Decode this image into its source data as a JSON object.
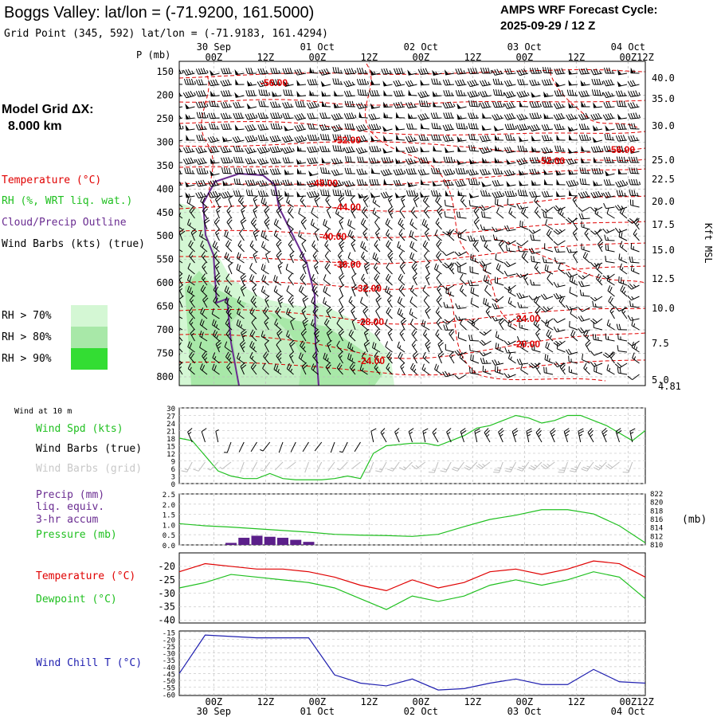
{
  "header": {
    "title": "Boggs Valley:  lat/lon = (-71.9200, 161.5000)",
    "subtitle": "Grid Point (345, 592) lat/lon = (-71.9183, 161.4294)",
    "cycle_line1": "AMPS WRF Forecast Cycle:",
    "cycle_line2": "2025-09-29 / 12  Z",
    "grid_label": "Model Grid ΔX:",
    "grid_value": "8.000 km"
  },
  "colors": {
    "temperature": "#e00000",
    "rh": "#20c020",
    "cloud_outline": "#6a2c91",
    "wind_chill": "#2020b0",
    "precip": "#5b1f8a",
    "rh70": "#d4f7d4",
    "rh80": "#a8e8a8",
    "rh90": "#33dd33"
  },
  "time_axis": {
    "top_labels": [
      "00Z",
      "12Z",
      "00Z",
      "12Z",
      "00Z",
      "12Z",
      "00Z",
      "12Z",
      "00Z",
      "12Z"
    ],
    "date_labels": [
      "30 Sep",
      "01 Oct",
      "02 Oct",
      "03 Oct",
      "04 Oct"
    ],
    "bottom_labels": [
      "00Z",
      "12Z",
      "00Z",
      "12Z",
      "00Z",
      "12Z",
      "00Z",
      "12Z",
      "00Z",
      "12Z"
    ]
  },
  "upper_panel": {
    "p_axis_label": "P (mb)",
    "p_levels": [
      150,
      200,
      250,
      300,
      350,
      400,
      450,
      500,
      550,
      600,
      650,
      700,
      750,
      800
    ],
    "kft_labels": [
      "40.0",
      "35.0",
      "30.0",
      "25.0",
      "22.5",
      "20.0",
      "17.5",
      "15.0",
      "12.5",
      "10.0",
      "7.5",
      "5.0"
    ],
    "kft_unit": "Kft MSL",
    "surface_height": "4.81",
    "legend": {
      "temperature": "Temperature (°C)",
      "rh": "RH (%, WRT liq. wat.)",
      "cloud": "Cloud/Precip Outline",
      "wind": "Wind Barbs (kts) (true)",
      "rh70": "RH > 70%",
      "rh80": "RH > 80%",
      "rh90": "RH > 90%"
    },
    "contour_labels": [
      "-56.00",
      "-52.00",
      "-56.00",
      "-52.00",
      "-48.00",
      "-44.00",
      "-40.00",
      "-36.00",
      "-32.00",
      "-28.00",
      "-24.00",
      "-24.00",
      "-20.00"
    ]
  },
  "wind_panel": {
    "header": "Wind at 10 m",
    "legend_speed": "Wind Spd (kts)",
    "legend_true": "Wind Barbs (true)",
    "legend_grid": "Wind Barbs (grid)",
    "y_ticks": [
      "30",
      "27",
      "24",
      "21",
      "18",
      "15",
      "12",
      "9",
      "6",
      "3",
      "0"
    ]
  },
  "precip_panel": {
    "legend_precip": "Precip (mm)",
    "legend_liq": "liq. equiv.",
    "legend_accum": "3-hr accum",
    "legend_pressure": "Pressure (mb)",
    "y_ticks_left": [
      "2.5",
      "2.0",
      "1.5",
      "1.0",
      "0.5",
      "0.0"
    ],
    "y_ticks_right": [
      "822",
      "820",
      "818",
      "816",
      "814",
      "812",
      "810"
    ],
    "right_unit": "(mb)"
  },
  "temp_panel": {
    "legend_temp": "Temperature (°C)",
    "legend_dew": "Dewpoint (°C)",
    "y_ticks": [
      "-20",
      "-25",
      "-30",
      "-35",
      "-40"
    ]
  },
  "chill_panel": {
    "legend": "Wind Chill T (°C)",
    "y_ticks": [
      "-15",
      "-20",
      "-25",
      "-30",
      "-35",
      "-40",
      "-45",
      "-50",
      "-55",
      "-60"
    ]
  },
  "chart_data": [
    {
      "type": "line",
      "title": "Wind at 10 m - Wind Spd (kts)",
      "x_unit": "forecast hour from 2025-09-29 12Z",
      "x": [
        0,
        3,
        6,
        9,
        12,
        15,
        18,
        21,
        24,
        27,
        30,
        33,
        36,
        39,
        42,
        45,
        48,
        51,
        54,
        57,
        60,
        63,
        66,
        69,
        72,
        75,
        78,
        81,
        84,
        87,
        90,
        93,
        96,
        99,
        102,
        105,
        108
      ],
      "series": [
        {
          "name": "Wind Spd (kts)",
          "values": [
            18,
            17,
            11,
            5,
            3,
            2,
            2,
            4,
            2,
            1.5,
            1.5,
            1.5,
            2,
            3,
            2,
            12,
            15,
            15.5,
            16,
            16,
            15,
            17,
            19,
            22,
            23,
            25,
            27,
            26,
            24,
            25,
            27,
            27,
            25,
            23,
            20,
            17,
            21
          ]
        }
      ],
      "ylim": [
        0,
        30
      ]
    },
    {
      "type": "bar",
      "title": "Precip (mm) liq. equiv. 3-hr accum",
      "x": [
        12,
        15,
        18,
        21,
        24,
        27,
        30
      ],
      "values": [
        0.1,
        0.35,
        0.45,
        0.4,
        0.35,
        0.25,
        0.15
      ],
      "ylim": [
        0,
        2.5
      ]
    },
    {
      "type": "line",
      "title": "Pressure (mb)",
      "x": [
        0,
        6,
        12,
        18,
        24,
        30,
        36,
        42,
        48,
        54,
        60,
        66,
        72,
        78,
        84,
        90,
        96,
        102,
        108
      ],
      "series": [
        {
          "name": "Pressure (mb)",
          "values": [
            815.0,
            814.5,
            814.2,
            813.8,
            813.4,
            813.0,
            812.5,
            812.3,
            812.2,
            812.0,
            812.5,
            814.3,
            816.0,
            817.0,
            818.3,
            818.3,
            817.3,
            814.5,
            810.5
          ]
        }
      ],
      "ylim": [
        810,
        822
      ]
    },
    {
      "type": "line",
      "title": "Temperature / Dewpoint (°C)",
      "x": [
        0,
        6,
        12,
        18,
        24,
        30,
        36,
        42,
        48,
        54,
        60,
        66,
        72,
        78,
        84,
        90,
        96,
        102,
        108
      ],
      "series": [
        {
          "name": "Temperature (°C)",
          "values": [
            -22,
            -19,
            -20,
            -21,
            -21,
            -22,
            -24,
            -27,
            -29,
            -25,
            -28,
            -26,
            -22,
            -21,
            -23,
            -21,
            -18,
            -19,
            -24
          ]
        },
        {
          "name": "Dewpoint (°C)",
          "values": [
            -28,
            -26,
            -23,
            -24,
            -25,
            -26,
            -28,
            -32,
            -36,
            -31,
            -33,
            -31,
            -27,
            -25,
            -27,
            -25,
            -22,
            -24,
            -32
          ]
        }
      ],
      "ylim": [
        -40,
        -15
      ]
    },
    {
      "type": "line",
      "title": "Wind Chill T (°C)",
      "x": [
        0,
        6,
        12,
        18,
        24,
        30,
        36,
        42,
        48,
        54,
        60,
        66,
        72,
        78,
        84,
        90,
        96,
        102,
        108
      ],
      "series": [
        {
          "name": "Wind Chill T (°C)",
          "values": [
            -45,
            -17,
            -18,
            -19,
            -19,
            -19,
            -46,
            -52,
            -54,
            -49,
            -57,
            -56,
            -52,
            -49,
            -53,
            -53,
            -42,
            -51,
            -52
          ]
        }
      ],
      "ylim": [
        -60,
        -15
      ]
    }
  ]
}
